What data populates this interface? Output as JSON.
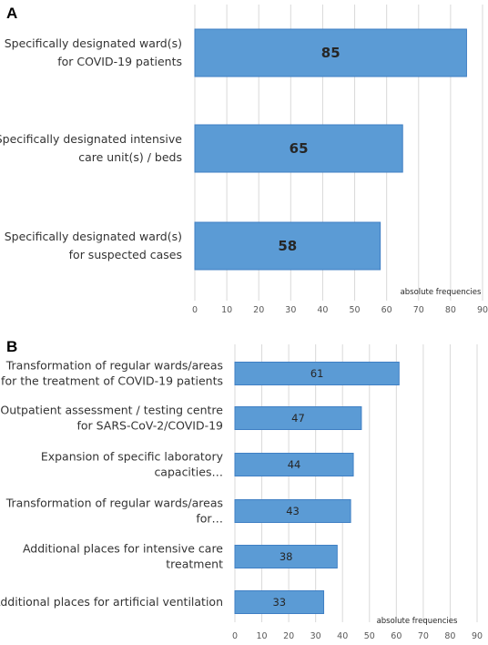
{
  "chart_data": [
    {
      "panel": "A",
      "type": "bar",
      "orientation": "horizontal",
      "categories": [
        [
          "Specifically designated ward(s)",
          "for COVID-19 patients"
        ],
        [
          "Specifically designated intensive",
          "care unit(s) / beds"
        ],
        [
          "Specifically designated ward(s)",
          "for suspected cases"
        ]
      ],
      "values": [
        85,
        65,
        58
      ],
      "xlabel": "absolute frequencies",
      "xlim": [
        0,
        90
      ],
      "xticks": [
        0,
        10,
        20,
        30,
        40,
        50,
        60,
        70,
        80,
        90
      ],
      "grid": true,
      "bar_color": "#5b9bd5"
    },
    {
      "panel": "B",
      "type": "bar",
      "orientation": "horizontal",
      "categories": [
        [
          "Transformation of regular wards/areas",
          "for the treatment of COVID-19 patients"
        ],
        [
          "Outpatient assessment / testing centre",
          "for SARS-CoV-2/COVID-19"
        ],
        [
          "Expansion of specific laboratory",
          "capacities…"
        ],
        [
          "Transformation of regular wards/areas",
          "for…"
        ],
        [
          "Additional places for intensive care",
          "treatment"
        ],
        [
          "Additional places for artificial ventilation"
        ]
      ],
      "values": [
        61,
        47,
        44,
        43,
        38,
        33
      ],
      "xlabel": "absolute frequencies",
      "xlim": [
        0,
        90
      ],
      "xticks": [
        0,
        10,
        20,
        30,
        40,
        50,
        60,
        70,
        80,
        90
      ],
      "grid": true,
      "bar_color": "#5b9bd5"
    }
  ]
}
